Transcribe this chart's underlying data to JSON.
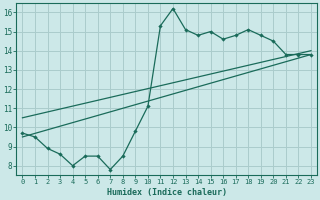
{
  "xlabel": "Humidex (Indice chaleur)",
  "bg_color": "#cce8e8",
  "line_color": "#1a6b5a",
  "grid_color": "#aacccc",
  "xlim": [
    -0.5,
    23.5
  ],
  "ylim": [
    7.5,
    16.5
  ],
  "xticks": [
    0,
    1,
    2,
    3,
    4,
    5,
    6,
    7,
    8,
    9,
    10,
    11,
    12,
    13,
    14,
    15,
    16,
    17,
    18,
    19,
    20,
    21,
    22,
    23
  ],
  "yticks": [
    8,
    9,
    10,
    11,
    12,
    13,
    14,
    15,
    16
  ],
  "line1_x": [
    0,
    1,
    2,
    3,
    4,
    5,
    6,
    7,
    8,
    9,
    10,
    11,
    12,
    13,
    14,
    15,
    16,
    17,
    18,
    19,
    20,
    21,
    22,
    23
  ],
  "line1_y": [
    9.7,
    9.5,
    8.9,
    8.6,
    8.0,
    8.5,
    8.5,
    7.8,
    8.5,
    9.8,
    11.1,
    15.3,
    16.2,
    15.1,
    14.8,
    15.0,
    14.6,
    14.8,
    15.1,
    14.8,
    14.5,
    13.8,
    13.8,
    13.8
  ],
  "line2_x": [
    0,
    23
  ],
  "line2_y": [
    9.5,
    13.8
  ],
  "line3_x": [
    0,
    23
  ],
  "line3_y": [
    10.5,
    14.0
  ]
}
